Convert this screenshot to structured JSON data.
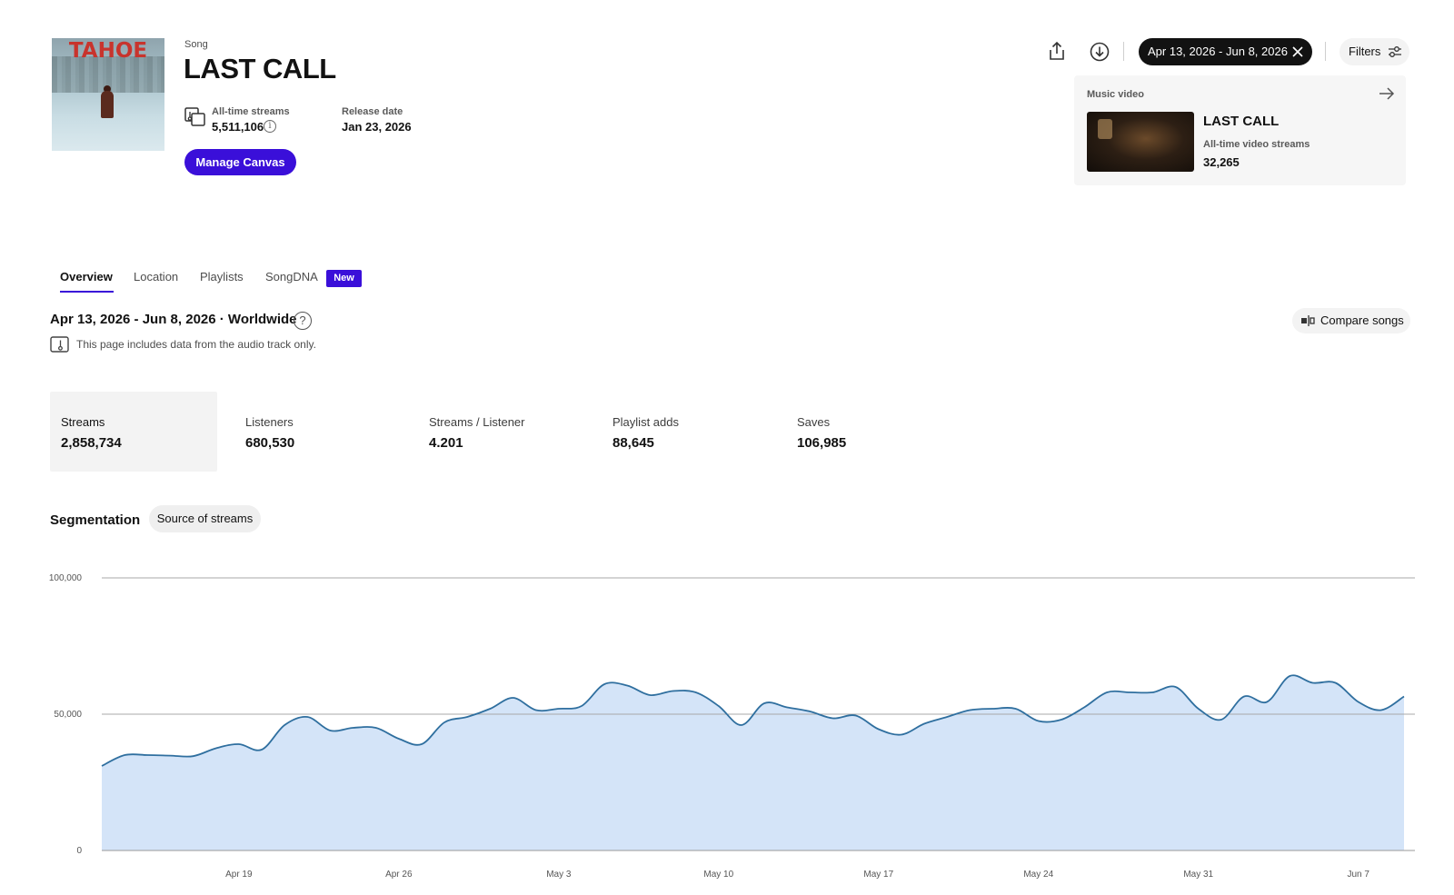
{
  "song": {
    "type_label": "Song",
    "title": "LAST CALL",
    "cover_text": "TAHOE",
    "all_time_streams_label": "All-time streams",
    "all_time_streams": "5,511,106",
    "release_date_label": "Release date",
    "release_date": "Jan 23, 2026",
    "manage_canvas_label": "Manage Canvas"
  },
  "toolbar": {
    "share_icon": "share-icon",
    "download_icon": "download-icon",
    "date_range": "Apr 13, 2026 - Jun 8, 2026",
    "filters_label": "Filters"
  },
  "music_video": {
    "label": "Music video",
    "title": "LAST CALL",
    "streams_label": "All-time video streams",
    "streams": "32,265"
  },
  "tabs": [
    {
      "label": "Overview",
      "active": true
    },
    {
      "label": "Location",
      "active": false
    },
    {
      "label": "Playlists",
      "active": false
    },
    {
      "label": "SongDNA",
      "active": false,
      "badge": "New"
    }
  ],
  "overview": {
    "heading": "Apr 13, 2026 - Jun 8, 2026 · Worldwide",
    "audio_note": "This page includes data from the audio track only.",
    "compare_label": "Compare songs"
  },
  "metrics": [
    {
      "label": "Streams",
      "value": "2,858,734",
      "selected": true
    },
    {
      "label": "Listeners",
      "value": "680,530",
      "selected": false
    },
    {
      "label": "Streams / Listener",
      "value": "4.201",
      "selected": false
    },
    {
      "label": "Playlist adds",
      "value": "88,645",
      "selected": false
    },
    {
      "label": "Saves",
      "value": "106,985",
      "selected": false
    }
  ],
  "segmentation": {
    "label": "Segmentation",
    "chip": "Source of streams"
  },
  "colors": {
    "accent": "#3a0fd9",
    "line": "#2f6f9f",
    "fill": "#d4e4f8"
  },
  "chart_data": {
    "type": "area",
    "x_start": "Apr 13",
    "x_end": "Jun 8",
    "ylim": [
      0,
      100000
    ],
    "y_ticks": [
      "0",
      "50,000",
      "100,000"
    ],
    "x_ticks": [
      "Apr 19",
      "Apr 26",
      "May 3",
      "May 10",
      "May 17",
      "May 24",
      "May 31",
      "Jun 7"
    ],
    "grid": true,
    "series": [
      {
        "values": [
          31000,
          35000,
          35000,
          34800,
          34600,
          37500,
          39000,
          37000,
          46000,
          49000,
          44000,
          45000,
          45000,
          41000,
          39000,
          47000,
          49000,
          52000,
          56000,
          51500,
          52000,
          53000,
          61000,
          60500,
          57000,
          58500,
          58000,
          53000,
          46000,
          54000,
          52500,
          51000,
          48500,
          49500,
          44500,
          42500,
          46500,
          49000,
          51500,
          52000,
          52000,
          47500,
          48000,
          52500,
          58000,
          58000,
          58000,
          60000,
          52000,
          48000,
          56500,
          54500,
          64000,
          61500,
          61500,
          54500,
          51500,
          56500
        ]
      }
    ]
  }
}
